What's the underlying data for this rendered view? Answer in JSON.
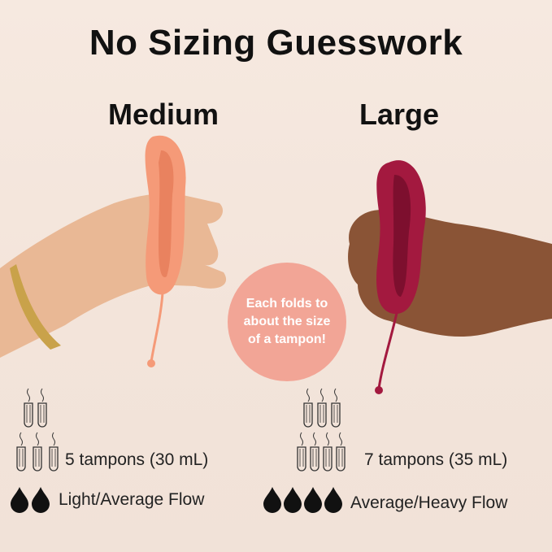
{
  "title": "No Sizing Guesswork",
  "colors": {
    "background": "#f5e7dd",
    "medium_cup": "#f59a78",
    "large_cup": "#a3193f",
    "badge": "#f2a596"
  },
  "medium": {
    "label": "Medium",
    "capacity": "5 tampons (30 mL)",
    "tampon_count": 5,
    "flow": "Light/Average Flow",
    "drop_count": 2
  },
  "large": {
    "label": "Large",
    "capacity": "7 tampons (35 mL)",
    "tampon_count": 7,
    "flow": "Average/Heavy Flow",
    "drop_count": 4
  },
  "badge": {
    "text": "Each folds to about the size of a tampon!"
  }
}
